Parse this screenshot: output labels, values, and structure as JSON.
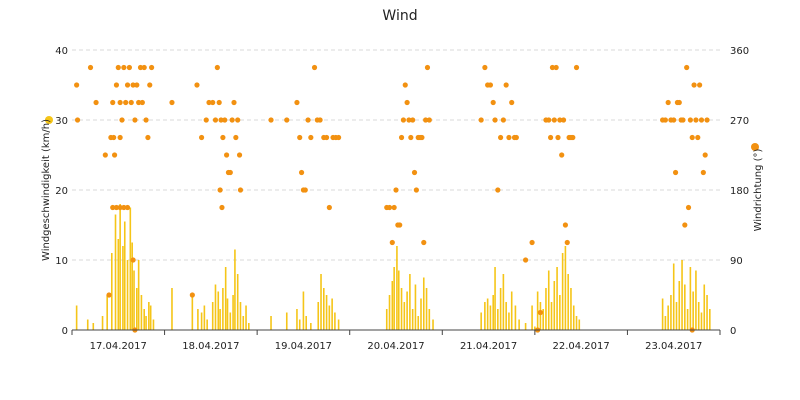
{
  "chart_data": {
    "type": "bar+scatter",
    "title": "Wind",
    "y_left": {
      "label": "Windgeschwindigkeit (km/h)",
      "min": 0,
      "max": 40,
      "ticks": [
        "0",
        "10",
        "20",
        "30",
        "40"
      ]
    },
    "y_right": {
      "label": "Windrichtung (°)",
      "min": 0,
      "max": 360,
      "ticks": [
        "0",
        "90",
        "180",
        "270",
        "360"
      ]
    },
    "x_categories": [
      "17.04.2017",
      "18.04.2017",
      "19.04.2017",
      "20.04.2017",
      "21.04.2017",
      "22.04.2017",
      "23.04.2017"
    ],
    "grid": "horizontal dashed",
    "series": [
      {
        "kind": "bars",
        "color": "#f5c518",
        "marker_color": "#f5c518",
        "unit": "km/h",
        "values": [
          [
            0.05,
            3.5
          ],
          [
            0.17,
            1.5
          ],
          [
            0.23,
            1.0
          ],
          [
            0.33,
            2.0
          ],
          [
            0.38,
            5.0
          ],
          [
            0.43,
            11.0
          ],
          [
            0.47,
            16.5
          ],
          [
            0.5,
            13.0
          ],
          [
            0.52,
            18.0
          ],
          [
            0.55,
            12.0
          ],
          [
            0.57,
            15.5
          ],
          [
            0.6,
            10.0
          ],
          [
            0.63,
            17.5
          ],
          [
            0.65,
            12.5
          ],
          [
            0.67,
            8.5
          ],
          [
            0.7,
            6.0
          ],
          [
            0.72,
            10.0
          ],
          [
            0.75,
            5.0
          ],
          [
            0.78,
            3.0
          ],
          [
            0.8,
            2.0
          ],
          [
            0.83,
            4.0
          ],
          [
            0.85,
            3.5
          ],
          [
            0.88,
            1.5
          ],
          [
            1.08,
            6.0
          ],
          [
            1.3,
            5.0
          ],
          [
            1.36,
            3.0
          ],
          [
            1.4,
            2.5
          ],
          [
            1.43,
            3.5
          ],
          [
            1.46,
            1.5
          ],
          [
            1.52,
            4.0
          ],
          [
            1.55,
            6.5
          ],
          [
            1.58,
            5.5
          ],
          [
            1.6,
            3.0
          ],
          [
            1.63,
            6.0
          ],
          [
            1.66,
            9.0
          ],
          [
            1.68,
            4.5
          ],
          [
            1.71,
            2.5
          ],
          [
            1.74,
            5.0
          ],
          [
            1.76,
            11.5
          ],
          [
            1.79,
            8.0
          ],
          [
            1.82,
            4.0
          ],
          [
            1.85,
            2.0
          ],
          [
            1.88,
            3.5
          ],
          [
            1.91,
            1.0
          ],
          [
            2.15,
            2.0
          ],
          [
            2.32,
            2.5
          ],
          [
            2.43,
            3.0
          ],
          [
            2.46,
            1.5
          ],
          [
            2.5,
            5.5
          ],
          [
            2.53,
            2.0
          ],
          [
            2.58,
            1.0
          ],
          [
            2.66,
            4.0
          ],
          [
            2.69,
            8.0
          ],
          [
            2.72,
            6.0
          ],
          [
            2.75,
            5.0
          ],
          [
            2.78,
            3.5
          ],
          [
            2.81,
            4.5
          ],
          [
            2.84,
            2.5
          ],
          [
            2.88,
            1.5
          ],
          [
            3.4,
            3.0
          ],
          [
            3.43,
            5.0
          ],
          [
            3.46,
            7.0
          ],
          [
            3.48,
            9.0
          ],
          [
            3.51,
            12.0
          ],
          [
            3.53,
            8.5
          ],
          [
            3.56,
            6.0
          ],
          [
            3.59,
            4.0
          ],
          [
            3.62,
            5.5
          ],
          [
            3.65,
            8.0
          ],
          [
            3.68,
            3.0
          ],
          [
            3.71,
            6.5
          ],
          [
            3.74,
            2.0
          ],
          [
            3.77,
            4.5
          ],
          [
            3.8,
            7.5
          ],
          [
            3.83,
            6.0
          ],
          [
            3.86,
            3.0
          ],
          [
            3.9,
            1.5
          ],
          [
            4.42,
            2.5
          ],
          [
            4.46,
            4.0
          ],
          [
            4.49,
            4.5
          ],
          [
            4.52,
            3.5
          ],
          [
            4.55,
            5.0
          ],
          [
            4.57,
            9.0
          ],
          [
            4.6,
            3.0
          ],
          [
            4.63,
            6.0
          ],
          [
            4.66,
            8.0
          ],
          [
            4.69,
            4.0
          ],
          [
            4.72,
            2.5
          ],
          [
            4.75,
            5.5
          ],
          [
            4.79,
            3.5
          ],
          [
            4.83,
            1.5
          ],
          [
            4.9,
            1.0
          ],
          [
            4.97,
            3.5
          ],
          [
            5.0,
            0.5
          ],
          [
            5.03,
            5.5
          ],
          [
            5.06,
            4.0
          ],
          [
            5.09,
            3.0
          ],
          [
            5.12,
            6.0
          ],
          [
            5.15,
            8.5
          ],
          [
            5.18,
            4.0
          ],
          [
            5.21,
            7.0
          ],
          [
            5.24,
            9.0
          ],
          [
            5.27,
            5.0
          ],
          [
            5.3,
            11.0
          ],
          [
            5.33,
            12.0
          ],
          [
            5.36,
            8.0
          ],
          [
            5.39,
            6.0
          ],
          [
            5.42,
            3.5
          ],
          [
            5.45,
            2.0
          ],
          [
            5.48,
            1.5
          ],
          [
            6.38,
            4.5
          ],
          [
            6.41,
            2.0
          ],
          [
            6.44,
            3.5
          ],
          [
            6.47,
            5.0
          ],
          [
            6.5,
            9.5
          ],
          [
            6.53,
            4.0
          ],
          [
            6.56,
            7.0
          ],
          [
            6.59,
            10.0
          ],
          [
            6.62,
            6.5
          ],
          [
            6.65,
            3.0
          ],
          [
            6.68,
            9.0
          ],
          [
            6.71,
            5.5
          ],
          [
            6.74,
            8.5
          ],
          [
            6.77,
            4.0
          ],
          [
            6.8,
            2.5
          ],
          [
            6.83,
            6.5
          ],
          [
            6.86,
            5.0
          ],
          [
            6.89,
            3.0
          ]
        ]
      },
      {
        "kind": "points",
        "color": "#f29111",
        "marker_color": "#f29111",
        "unit": "°",
        "values": [
          [
            0.05,
            315
          ],
          [
            0.06,
            270
          ],
          [
            0.2,
            337.5
          ],
          [
            0.26,
            292.5
          ],
          [
            0.36,
            225
          ],
          [
            0.42,
            247.5
          ],
          [
            0.44,
            292.5
          ],
          [
            0.46,
            225
          ],
          [
            0.48,
            315
          ],
          [
            0.5,
            337.5
          ],
          [
            0.52,
            292.5
          ],
          [
            0.54,
            270
          ],
          [
            0.56,
            337.5
          ],
          [
            0.58,
            292.5
          ],
          [
            0.6,
            315
          ],
          [
            0.62,
            337.5
          ],
          [
            0.64,
            292.5
          ],
          [
            0.66,
            315
          ],
          [
            0.68,
            270
          ],
          [
            0.7,
            315
          ],
          [
            0.72,
            292.5
          ],
          [
            0.74,
            337.5
          ],
          [
            0.76,
            292.5
          ],
          [
            0.78,
            337.5
          ],
          [
            0.8,
            270
          ],
          [
            0.82,
            247.5
          ],
          [
            0.84,
            315
          ],
          [
            0.86,
            337.5
          ],
          [
            0.44,
            157.5
          ],
          [
            0.48,
            157.5
          ],
          [
            0.52,
            157.5
          ],
          [
            0.56,
            157.5
          ],
          [
            0.6,
            157.5
          ],
          [
            0.45,
            247.5
          ],
          [
            0.52,
            247.5
          ],
          [
            0.4,
            45
          ],
          [
            0.66,
            90
          ],
          [
            0.68,
            0
          ],
          [
            1.08,
            292.5
          ],
          [
            1.35,
            315
          ],
          [
            1.4,
            247.5
          ],
          [
            1.45,
            270
          ],
          [
            1.48,
            292.5
          ],
          [
            1.52,
            292.5
          ],
          [
            1.55,
            270
          ],
          [
            1.57,
            337.5
          ],
          [
            1.59,
            292.5
          ],
          [
            1.61,
            270
          ],
          [
            1.63,
            247.5
          ],
          [
            1.65,
            270
          ],
          [
            1.67,
            225
          ],
          [
            1.69,
            202.5
          ],
          [
            1.71,
            202.5
          ],
          [
            1.73,
            270
          ],
          [
            1.75,
            292.5
          ],
          [
            1.77,
            247.5
          ],
          [
            1.79,
            270
          ],
          [
            1.81,
            225
          ],
          [
            1.82,
            180
          ],
          [
            1.6,
            180
          ],
          [
            1.62,
            157.5
          ],
          [
            1.3,
            45
          ],
          [
            2.15,
            270
          ],
          [
            2.32,
            270
          ],
          [
            2.43,
            292.5
          ],
          [
            2.46,
            247.5
          ],
          [
            2.48,
            202.5
          ],
          [
            2.5,
            180
          ],
          [
            2.52,
            180
          ],
          [
            2.55,
            270
          ],
          [
            2.58,
            247.5
          ],
          [
            2.62,
            337.5
          ],
          [
            2.65,
            270
          ],
          [
            2.68,
            270
          ],
          [
            2.72,
            247.5
          ],
          [
            2.75,
            247.5
          ],
          [
            2.78,
            157.5
          ],
          [
            2.82,
            247.5
          ],
          [
            2.85,
            247.5
          ],
          [
            2.88,
            247.5
          ],
          [
            3.4,
            157.5
          ],
          [
            3.43,
            157.5
          ],
          [
            3.46,
            112.5
          ],
          [
            3.48,
            157.5
          ],
          [
            3.5,
            180
          ],
          [
            3.52,
            135
          ],
          [
            3.54,
            135
          ],
          [
            3.56,
            247.5
          ],
          [
            3.58,
            270
          ],
          [
            3.6,
            315
          ],
          [
            3.62,
            292.5
          ],
          [
            3.64,
            270
          ],
          [
            3.66,
            247.5
          ],
          [
            3.68,
            270
          ],
          [
            3.7,
            202.5
          ],
          [
            3.72,
            180
          ],
          [
            3.74,
            247.5
          ],
          [
            3.76,
            247.5
          ],
          [
            3.78,
            247.5
          ],
          [
            3.8,
            112.5
          ],
          [
            3.82,
            270
          ],
          [
            3.84,
            337.5
          ],
          [
            3.86,
            270
          ],
          [
            4.42,
            270
          ],
          [
            4.46,
            337.5
          ],
          [
            4.49,
            315
          ],
          [
            4.52,
            315
          ],
          [
            4.55,
            292.5
          ],
          [
            4.57,
            270
          ],
          [
            4.6,
            180
          ],
          [
            4.63,
            247.5
          ],
          [
            4.66,
            270
          ],
          [
            4.69,
            315
          ],
          [
            4.72,
            247.5
          ],
          [
            4.75,
            292.5
          ],
          [
            4.78,
            247.5
          ],
          [
            4.8,
            247.5
          ],
          [
            4.9,
            90
          ],
          [
            4.97,
            112.5
          ],
          [
            5.03,
            0
          ],
          [
            5.06,
            22.5
          ],
          [
            5.12,
            270
          ],
          [
            5.15,
            270
          ],
          [
            5.17,
            247.5
          ],
          [
            5.19,
            337.5
          ],
          [
            5.21,
            270
          ],
          [
            5.23,
            337.5
          ],
          [
            5.25,
            247.5
          ],
          [
            5.27,
            270
          ],
          [
            5.29,
            225
          ],
          [
            5.31,
            270
          ],
          [
            5.33,
            135
          ],
          [
            5.35,
            112.5
          ],
          [
            5.37,
            247.5
          ],
          [
            5.39,
            247.5
          ],
          [
            5.41,
            247.5
          ],
          [
            5.45,
            337.5
          ],
          [
            6.38,
            270
          ],
          [
            6.41,
            270
          ],
          [
            6.44,
            292.5
          ],
          [
            6.47,
            270
          ],
          [
            6.5,
            270
          ],
          [
            6.52,
            202.5
          ],
          [
            6.54,
            292.5
          ],
          [
            6.56,
            292.5
          ],
          [
            6.58,
            270
          ],
          [
            6.6,
            270
          ],
          [
            6.62,
            135
          ],
          [
            6.64,
            337.5
          ],
          [
            6.66,
            157.5
          ],
          [
            6.68,
            270
          ],
          [
            6.7,
            247.5
          ],
          [
            6.72,
            315
          ],
          [
            6.74,
            270
          ],
          [
            6.76,
            247.5
          ],
          [
            6.78,
            315
          ],
          [
            6.8,
            270
          ],
          [
            6.82,
            202.5
          ],
          [
            6.84,
            225
          ],
          [
            6.86,
            270
          ],
          [
            6.7,
            0
          ]
        ]
      }
    ]
  }
}
